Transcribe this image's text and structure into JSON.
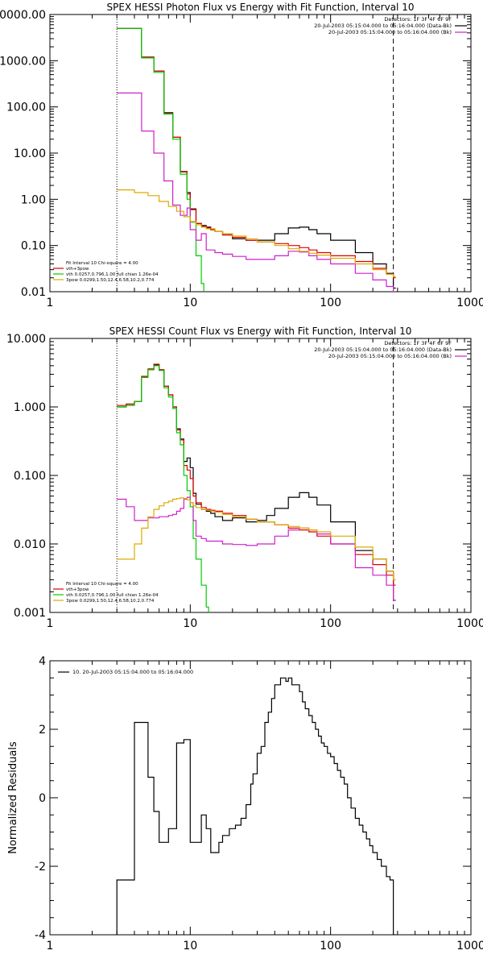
{
  "chart_data": [
    {
      "type": "line",
      "title": "SPEX HESSI Photon Flux vs Energy with Fit Function, Interval 10",
      "xscale": "log",
      "yscale": "log",
      "xlim": [
        1,
        1000
      ],
      "ylim": [
        0.01,
        10000
      ],
      "xticks": [
        1,
        10,
        100,
        1000
      ],
      "xtick_labels": [
        "1",
        "10",
        "100",
        "1000"
      ],
      "yticks": [
        0.01,
        0.1,
        1,
        10,
        100,
        1000,
        10000
      ],
      "ytick_labels": [
        "0.01",
        "0.10",
        "1.00",
        "10.00",
        "100.00",
        "1000.00",
        "10000.00"
      ],
      "fit_range_lines": [
        {
          "x": 3.0,
          "style": "dotted",
          "color": "#000000"
        },
        {
          "x": 280,
          "style": "dashed",
          "color": "#000000"
        }
      ],
      "legend_top_right": [
        {
          "text": "Detectors: 1F 3F 4F 6F 9F",
          "color": "#000000"
        },
        {
          "text": "20-Jul-2003 05:15:04.000 to 05:16:04.000 (Data-Bk)",
          "color": "#000000"
        },
        {
          "text": "20-Jul-2003 05:15:04.000 to 05:16:04.000 (Bk)",
          "color": "#cc22cc"
        }
      ],
      "legend_bottom_left": [
        {
          "text": "Fit Interval 10   Chi-square = 4.00",
          "color": "#000000"
        },
        {
          "text": "vth+3pow",
          "color": "#dd0000"
        },
        {
          "text": "vth 0.0257,0.796,1.00  full chian 1.26e-04",
          "color": "#00cc00"
        },
        {
          "text": "3pow 0.0299,1.50,12.4,6.58,10.2,0.774",
          "color": "#ddaa00"
        }
      ],
      "series": [
        {
          "color": "#000000",
          "x": [
            3.0,
            3.5,
            4.0,
            4.5,
            5.0,
            5.5,
            6.0,
            6.5,
            7.0,
            7.5,
            8.0,
            8.5,
            9.0,
            9.5,
            10,
            11,
            12,
            13,
            14,
            15,
            17,
            20,
            25,
            30,
            40,
            50,
            60,
            70,
            80,
            100,
            150,
            200,
            250,
            280
          ],
          "values": [
            5000,
            5000,
            5000,
            1200,
            1200,
            600,
            600,
            75,
            75,
            22,
            22,
            4,
            4,
            1.4,
            0.62,
            0.3,
            0.27,
            0.25,
            0.22,
            0.2,
            0.17,
            0.14,
            0.13,
            0.13,
            0.18,
            0.24,
            0.25,
            0.22,
            0.18,
            0.13,
            0.07,
            0.04,
            0.025,
            0.012
          ]
        },
        {
          "color": "#dd0000",
          "x": [
            3.0,
            3.5,
            4.0,
            4.5,
            5.0,
            5.5,
            6.0,
            6.5,
            7.0,
            7.5,
            8.0,
            8.5,
            9.0,
            9.5,
            10,
            11,
            12,
            13,
            14,
            15,
            17,
            20,
            25,
            30,
            40,
            50,
            60,
            70,
            80,
            100,
            150,
            200,
            250,
            280
          ],
          "values": [
            5000,
            5000,
            5000,
            1200,
            1200,
            600,
            600,
            72,
            72,
            22,
            22,
            3.9,
            3.9,
            1.3,
            0.6,
            0.3,
            0.26,
            0.24,
            0.22,
            0.2,
            0.17,
            0.15,
            0.13,
            0.12,
            0.11,
            0.1,
            0.09,
            0.08,
            0.07,
            0.06,
            0.045,
            0.032,
            0.024,
            0.02
          ]
        },
        {
          "color": "#00cc00",
          "x": [
            3.0,
            3.5,
            4.0,
            4.5,
            5.0,
            5.5,
            6.0,
            6.5,
            7.0,
            7.5,
            8.0,
            8.5,
            9.0,
            9.5,
            10,
            11,
            12,
            12.5
          ],
          "values": [
            5000,
            5000,
            5000,
            1150,
            1150,
            560,
            560,
            70,
            70,
            20,
            20,
            3.5,
            3.5,
            1.0,
            0.32,
            0.06,
            0.015,
            0.008
          ]
        },
        {
          "color": "#cc22cc",
          "x": [
            3.0,
            3.5,
            4.0,
            4.5,
            5.0,
            5.5,
            6.0,
            6.5,
            7.0,
            7.5,
            8.0,
            8.5,
            9.0,
            9.5,
            10,
            11,
            12,
            13,
            15,
            17,
            20,
            25,
            30,
            40,
            50,
            60,
            70,
            80,
            100,
            150,
            200,
            250,
            280
          ],
          "values": [
            200,
            200,
            200,
            30,
            30,
            10,
            10,
            2.5,
            2.5,
            0.75,
            0.75,
            0.45,
            0.45,
            0.65,
            0.22,
            0.13,
            0.18,
            0.08,
            0.07,
            0.065,
            0.058,
            0.05,
            0.05,
            0.06,
            0.075,
            0.072,
            0.06,
            0.05,
            0.04,
            0.025,
            0.018,
            0.013,
            0.01
          ]
        },
        {
          "color": "#ddaa00",
          "x": [
            3.0,
            3.5,
            4.0,
            4.5,
            5.0,
            5.5,
            6.0,
            6.5,
            7.0,
            7.5,
            8.0,
            9.0,
            10,
            11,
            12,
            13,
            15,
            17,
            20,
            25,
            30,
            40,
            50,
            60,
            70,
            80,
            100,
            150,
            200,
            250,
            280
          ],
          "values": [
            1.6,
            1.6,
            1.4,
            1.4,
            1.2,
            1.2,
            0.9,
            0.9,
            0.7,
            0.7,
            0.55,
            0.42,
            0.33,
            0.28,
            0.25,
            0.23,
            0.2,
            0.18,
            0.16,
            0.14,
            0.12,
            0.1,
            0.085,
            0.075,
            0.068,
            0.062,
            0.053,
            0.04,
            0.03,
            0.024,
            0.021
          ]
        }
      ]
    },
    {
      "type": "line",
      "title": "SPEX HESSI Count Flux vs Energy with Fit Function, Interval 10",
      "xscale": "log",
      "yscale": "log",
      "xlim": [
        1,
        1000
      ],
      "ylim": [
        0.001,
        10
      ],
      "xticks": [
        1,
        10,
        100,
        1000
      ],
      "xtick_labels": [
        "1",
        "10",
        "100",
        "1000"
      ],
      "yticks": [
        0.001,
        0.01,
        0.1,
        1,
        10
      ],
      "ytick_labels": [
        "0.001",
        "0.010",
        "0.100",
        "1.000",
        "10.000"
      ],
      "fit_range_lines": [
        {
          "x": 3.0,
          "style": "dotted",
          "color": "#000000"
        },
        {
          "x": 280,
          "style": "dashed",
          "color": "#000000"
        }
      ],
      "legend_top_right": [
        {
          "text": "Detectors: 1F 3F 4F 6F 9F",
          "color": "#000000"
        },
        {
          "text": "20-Jul-2003 05:15:04.000 to 05:16:04.000 (Data-Bk)",
          "color": "#000000"
        },
        {
          "text": "20-Jul-2003 05:15:04.000 to 05:16:04.000 (Bk)",
          "color": "#cc22cc"
        }
      ],
      "legend_bottom_left": [
        {
          "text": "Fit Interval 10   Chi-square = 4.00",
          "color": "#000000"
        },
        {
          "text": "vth+3pow",
          "color": "#dd0000"
        },
        {
          "text": "vth 0.0257,0.796,1.00  full chian 1.26e-04",
          "color": "#00cc00"
        },
        {
          "text": "3pow 0.0299,1.50,12.4,6.58,10.2,0.774",
          "color": "#ddaa00"
        }
      ],
      "series": [
        {
          "color": "#000000",
          "x": [
            3.0,
            3.5,
            4.0,
            4.5,
            5.0,
            5.5,
            6.0,
            6.5,
            7.0,
            7.5,
            8.0,
            8.5,
            9.0,
            9.5,
            10,
            10.5,
            11,
            12,
            13,
            14,
            15,
            17,
            20,
            25,
            30,
            35,
            40,
            50,
            60,
            70,
            80,
            100,
            150,
            200,
            250,
            280
          ],
          "values": [
            1.0,
            1.1,
            1.2,
            2.7,
            3.5,
            4.1,
            3.5,
            2.0,
            1.5,
            1.0,
            0.48,
            0.34,
            0.16,
            0.18,
            0.13,
            0.055,
            0.038,
            0.032,
            0.03,
            0.028,
            0.025,
            0.022,
            0.024,
            0.021,
            0.022,
            0.026,
            0.033,
            0.048,
            0.056,
            0.048,
            0.037,
            0.021,
            0.008,
            0.006,
            0.004,
            0.0015
          ]
        },
        {
          "color": "#dd0000",
          "x": [
            3.0,
            3.5,
            4.0,
            4.5,
            5.0,
            5.5,
            6.0,
            6.5,
            7.0,
            7.5,
            8.0,
            8.5,
            9.0,
            9.5,
            10,
            10.5,
            11,
            12,
            13,
            14,
            15,
            17,
            20,
            25,
            30,
            40,
            50,
            60,
            70,
            80,
            100,
            150,
            200,
            250,
            280
          ],
          "values": [
            1.05,
            1.1,
            1.2,
            2.8,
            3.6,
            4.2,
            3.5,
            2.0,
            1.5,
            1.0,
            0.46,
            0.33,
            0.14,
            0.12,
            0.09,
            0.05,
            0.04,
            0.034,
            0.032,
            0.031,
            0.03,
            0.028,
            0.026,
            0.023,
            0.021,
            0.019,
            0.017,
            0.016,
            0.015,
            0.013,
            0.01,
            0.007,
            0.005,
            0.0035,
            0.0025
          ]
        },
        {
          "color": "#00cc00",
          "x": [
            3.0,
            3.5,
            4.0,
            4.5,
            5.0,
            5.5,
            6.0,
            6.5,
            7.0,
            7.5,
            8.0,
            8.5,
            9.0,
            9.5,
            10,
            10.5,
            11,
            12,
            13,
            13.5
          ],
          "values": [
            1.0,
            1.05,
            1.2,
            2.7,
            3.5,
            4.0,
            3.4,
            1.9,
            1.4,
            0.95,
            0.42,
            0.28,
            0.1,
            0.06,
            0.035,
            0.012,
            0.006,
            0.0025,
            0.0012,
            0.0008
          ]
        },
        {
          "color": "#cc22cc",
          "x": [
            3.0,
            3.5,
            4.0,
            4.5,
            5.0,
            5.5,
            6.0,
            6.5,
            7.0,
            7.5,
            8.0,
            8.5,
            9.0,
            9.5,
            10,
            10.5,
            11,
            12,
            13,
            14,
            15,
            17,
            20,
            25,
            30,
            40,
            50,
            60,
            70,
            80,
            100,
            150,
            200,
            250,
            280
          ],
          "values": [
            0.045,
            0.035,
            0.022,
            0.022,
            0.024,
            0.024,
            0.025,
            0.025,
            0.026,
            0.027,
            0.03,
            0.033,
            0.045,
            0.048,
            0.04,
            0.022,
            0.013,
            0.012,
            0.011,
            0.011,
            0.011,
            0.01,
            0.0098,
            0.0095,
            0.01,
            0.013,
            0.016,
            0.017,
            0.016,
            0.014,
            0.01,
            0.0045,
            0.0035,
            0.0025,
            0.0015
          ]
        },
        {
          "color": "#ddaa00",
          "x": [
            3.0,
            3.5,
            4.0,
            4.5,
            5.0,
            5.5,
            6.0,
            6.5,
            7.0,
            7.5,
            8.0,
            8.5,
            9.0,
            9.5,
            10,
            10.5,
            11,
            12,
            13,
            14,
            15,
            17,
            20,
            25,
            30,
            40,
            50,
            60,
            70,
            80,
            100,
            150,
            200,
            250,
            280
          ],
          "values": [
            0.006,
            0.006,
            0.01,
            0.017,
            0.025,
            0.032,
            0.036,
            0.04,
            0.042,
            0.045,
            0.046,
            0.047,
            0.046,
            0.044,
            0.04,
            0.036,
            0.034,
            0.032,
            0.031,
            0.03,
            0.029,
            0.027,
            0.025,
            0.023,
            0.021,
            0.019,
            0.018,
            0.017,
            0.016,
            0.015,
            0.013,
            0.009,
            0.006,
            0.004,
            0.003
          ]
        }
      ]
    },
    {
      "type": "line",
      "title": "",
      "ylabel": "Normalized Residuals",
      "xscale": "log",
      "yscale": "linear",
      "xlim": [
        1,
        1000
      ],
      "ylim": [
        -4,
        4
      ],
      "xticks": [
        1,
        10,
        100,
        1000
      ],
      "xtick_labels": [
        "1",
        "10",
        "100",
        "1000"
      ],
      "yticks": [
        -4,
        -2,
        0,
        2,
        4
      ],
      "ytick_labels": [
        "-4",
        "-2",
        "0",
        "2",
        "4"
      ],
      "legend": [
        {
          "text": "10. 20-Jul-2003 05:15:04.000 to 05:16:04.000",
          "color": "#000000"
        }
      ],
      "series": [
        {
          "color": "#000000",
          "step": true,
          "x": [
            3.0,
            4.0,
            4.5,
            5.0,
            5.5,
            6.0,
            6.5,
            7.0,
            7.5,
            8.0,
            8.5,
            9.0,
            9.5,
            10,
            11,
            12,
            13,
            14,
            15,
            16,
            17,
            18,
            19,
            20,
            21,
            22,
            23,
            24,
            25,
            26,
            27,
            28,
            30,
            32,
            34,
            36,
            38,
            40,
            42,
            44,
            46,
            48,
            50,
            53,
            56,
            60,
            63,
            66,
            70,
            74,
            78,
            82,
            86,
            90,
            95,
            100,
            106,
            112,
            118,
            125,
            132,
            140,
            150,
            160,
            170,
            180,
            190,
            200,
            215,
            230,
            250,
            265,
            280
          ],
          "values": [
            -2.4,
            2.2,
            2.2,
            0.6,
            -0.4,
            -1.3,
            -1.3,
            -0.9,
            -0.9,
            1.6,
            1.6,
            1.7,
            1.7,
            -1.3,
            -1.3,
            -0.5,
            -0.9,
            -1.6,
            -1.6,
            -1.3,
            -1.1,
            -1.1,
            -0.9,
            -0.9,
            -0.8,
            -0.8,
            -0.6,
            -0.6,
            -0.2,
            -0.2,
            0.4,
            0.7,
            1.3,
            1.5,
            2.2,
            2.5,
            2.9,
            3.3,
            3.3,
            3.5,
            3.5,
            3.4,
            3.5,
            3.3,
            3.3,
            3.1,
            2.8,
            2.6,
            2.4,
            2.2,
            2.0,
            1.8,
            1.6,
            1.5,
            1.3,
            1.2,
            1.0,
            0.8,
            0.6,
            0.4,
            0.0,
            -0.3,
            -0.6,
            -0.8,
            -1.0,
            -1.2,
            -1.4,
            -1.6,
            -1.8,
            -2.0,
            -2.3,
            -2.4,
            -4.0
          ]
        }
      ]
    }
  ]
}
